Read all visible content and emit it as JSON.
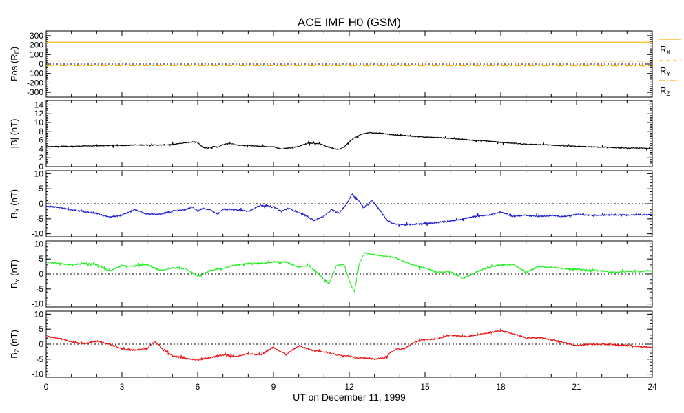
{
  "chart_data": {
    "type": "line",
    "title": "ACE IMF H0 (GSM)",
    "xlabel": "UT on December 11, 1999",
    "xlim": [
      0,
      24
    ],
    "xticks": [
      0,
      3,
      6,
      9,
      12,
      15,
      18,
      21,
      24
    ],
    "panels": [
      {
        "ylabel": "Pos (R",
        "ylabel_sub": "E",
        "ylabel_tail": ")",
        "ylim": [
          -350,
          350
        ],
        "yticks": [
          300,
          200,
          100,
          0,
          -100,
          -200,
          -300
        ],
        "zero_line": true,
        "series": [
          {
            "name": "R",
            "sub": "X",
            "color": "#ffb000",
            "style": "solid",
            "x": [
              0,
              24
            ],
            "y": [
              232,
              232
            ]
          },
          {
            "name": "R",
            "sub": "Y",
            "color": "#ffb000",
            "style": "dashed",
            "x": [
              0,
              24
            ],
            "y": [
              34,
              31
            ]
          },
          {
            "name": "R",
            "sub": "Z",
            "color": "#ffb000",
            "style": "dashdot",
            "x": [
              0,
              24
            ],
            "y": [
              -17,
              -19
            ]
          }
        ]
      },
      {
        "ylabel": "|B| (nT)",
        "ylim": [
          0,
          15
        ],
        "yticks": [
          14,
          12,
          10,
          8,
          6,
          4,
          2,
          0
        ],
        "zero_line": false,
        "series": [
          {
            "name": "",
            "color": "#000000",
            "x": [
              0,
              0.5,
              1,
              1.5,
              2,
              2.5,
              3,
              3.5,
              4,
              4.5,
              5,
              5.5,
              5.8,
              6.0,
              6.2,
              6.4,
              6.6,
              6.8,
              7.0,
              7.3,
              7.6,
              8.0,
              8.5,
              9.0,
              9.3,
              9.6,
              10.0,
              10.4,
              10.8,
              11.1,
              11.4,
              11.6,
              11.8,
              12.0,
              12.2,
              12.5,
              12.8,
              13.2,
              13.6,
              14.0,
              14.5,
              15,
              15.5,
              16,
              16.5,
              17,
              17.5,
              18,
              18.5,
              19,
              19.5,
              20,
              20.5,
              21,
              21.5,
              22,
              22.5,
              23,
              23.5,
              24
            ],
            "y": [
              4.5,
              4.6,
              4.6,
              4.7,
              4.7,
              4.8,
              4.8,
              4.9,
              4.9,
              4.9,
              5.0,
              5.4,
              5.6,
              5.5,
              4.4,
              4.2,
              4.6,
              4.4,
              5.0,
              5.3,
              4.8,
              4.8,
              4.6,
              4.5,
              4.0,
              4.2,
              4.6,
              5.4,
              5.2,
              4.6,
              4.1,
              3.9,
              4.5,
              5.6,
              6.5,
              7.4,
              7.7,
              7.6,
              7.3,
              7.1,
              6.9,
              6.7,
              6.6,
              6.4,
              6.2,
              5.9,
              5.8,
              5.5,
              5.3,
              5.1,
              5.0,
              4.9,
              4.7,
              4.6,
              4.5,
              4.4,
              4.3,
              4.2,
              4.2,
              4.1
            ]
          }
        ]
      },
      {
        "ylabel": "B",
        "ylabel_sub": "X",
        "ylabel_tail": " (nT)",
        "ylim": [
          -11,
          11
        ],
        "yticks": [
          10,
          5,
          0,
          -5,
          -10
        ],
        "zero_line": true,
        "series": [
          {
            "name": "",
            "color": "#2020cc",
            "x": [
              0,
              0.5,
              1,
              1.5,
              2,
              2.5,
              3,
              3.5,
              4,
              4.5,
              5,
              5.5,
              5.8,
              6.0,
              6.2,
              6.5,
              6.8,
              7.0,
              7.5,
              8.0,
              8.5,
              9.0,
              9.3,
              9.6,
              10.0,
              10.3,
              10.6,
              11.0,
              11.3,
              11.6,
              11.9,
              12.1,
              12.3,
              12.6,
              12.9,
              13.2,
              13.5,
              13.8,
              14.2,
              14.6,
              15,
              15.5,
              16,
              16.5,
              17,
              17.5,
              18,
              18.5,
              19,
              19.5,
              20,
              20.5,
              21,
              21.5,
              22,
              22.5,
              23,
              23.5,
              24
            ],
            "y": [
              -0.8,
              -1.2,
              -2.0,
              -2.6,
              -3.2,
              -4.5,
              -3.8,
              -2.0,
              -3.5,
              -3.5,
              -2.5,
              -2.0,
              -1.0,
              -2.5,
              -1.5,
              -2.0,
              -3.5,
              -1.8,
              -2.0,
              -2.5,
              -0.5,
              -1.0,
              -2.5,
              -1.5,
              -3.0,
              -4.0,
              -5.6,
              -4.2,
              -2.0,
              -3.2,
              0.0,
              3.2,
              1.8,
              -1.5,
              1.2,
              -2.0,
              -5.5,
              -6.8,
              -7.0,
              -6.8,
              -6.6,
              -6.2,
              -5.8,
              -5.0,
              -4.2,
              -3.8,
              -2.8,
              -4.2,
              -3.8,
              -4.2,
              -3.9,
              -4.2,
              -3.6,
              -3.8,
              -3.8,
              -3.6,
              -3.8,
              -3.6,
              -3.7
            ]
          }
        ]
      },
      {
        "ylabel": "B",
        "ylabel_sub": "Y",
        "ylabel_tail": " (nT)",
        "ylim": [
          -11,
          11
        ],
        "yticks": [
          10,
          5,
          0,
          -5,
          -10
        ],
        "zero_line": true,
        "series": [
          {
            "name": "",
            "color": "#22ee22",
            "x": [
              0,
              0.5,
              1,
              1.5,
              2,
              2.5,
              3,
              3.5,
              4,
              4.5,
              5,
              5.5,
              6.0,
              6.5,
              7.0,
              7.5,
              8.0,
              8.5,
              9.0,
              9.5,
              10.0,
              10.4,
              10.8,
              11.2,
              11.5,
              11.8,
              12.0,
              12.2,
              12.4,
              12.6,
              12.9,
              13.2,
              13.5,
              13.8,
              14.2,
              14.6,
              15,
              15.5,
              16,
              16.5,
              17,
              17.5,
              18,
              18.5,
              19,
              19.5,
              20,
              20.5,
              21,
              21.5,
              22,
              22.5,
              23,
              23.5,
              24
            ],
            "y": [
              4.0,
              3.5,
              3.0,
              3.5,
              3.2,
              1.0,
              2.8,
              2.6,
              3.2,
              1.2,
              2.0,
              1.8,
              -0.8,
              1.2,
              2.0,
              3.0,
              3.5,
              3.5,
              4.0,
              4.0,
              2.2,
              2.8,
              -0.2,
              -3.2,
              2.8,
              3.2,
              -2.2,
              -6.0,
              3.5,
              7.0,
              6.5,
              6.2,
              5.8,
              5.5,
              4.0,
              2.8,
              2.0,
              0.5,
              0.8,
              -1.5,
              0.5,
              2.2,
              3.0,
              3.2,
              0.5,
              2.5,
              2.2,
              1.8,
              1.6,
              1.2,
              1.0,
              0.5,
              0.9,
              0.8,
              1.2
            ]
          }
        ]
      },
      {
        "ylabel": "B",
        "ylabel_sub": "Z",
        "ylabel_tail": " (nT)",
        "ylim": [
          -11,
          11
        ],
        "yticks": [
          10,
          5,
          0,
          -5,
          -10
        ],
        "zero_line": true,
        "series": [
          {
            "name": "",
            "color": "#ee1111",
            "x": [
              0,
              0.5,
              1,
              1.5,
              2,
              2.5,
              3,
              3.5,
              4,
              4.3,
              4.6,
              5.0,
              5.5,
              6.0,
              6.5,
              7.0,
              7.5,
              8.0,
              8.5,
              9.0,
              9.5,
              10.0,
              10.5,
              11.0,
              11.5,
              12.0,
              12.3,
              12.6,
              13.0,
              13.4,
              13.8,
              14.2,
              14.6,
              15,
              15.5,
              16,
              16.5,
              17,
              17.5,
              18,
              18.5,
              19,
              19.5,
              20,
              20.5,
              21,
              21.5,
              22,
              22.5,
              23,
              23.5,
              24
            ],
            "y": [
              2.5,
              2.0,
              0.8,
              0.2,
              1.0,
              0.0,
              -1.5,
              -2.0,
              -1.5,
              1.0,
              -1.5,
              -3.8,
              -4.8,
              -5.2,
              -4.5,
              -3.5,
              -4.2,
              -3.2,
              -3.5,
              -1.0,
              -3.5,
              -0.5,
              -2.0,
              -2.5,
              -3.5,
              -4.0,
              -4.5,
              -4.5,
              -5.0,
              -4.5,
              -1.8,
              -1.5,
              0.8,
              1.5,
              1.8,
              3.0,
              2.5,
              3.0,
              3.8,
              4.5,
              3.5,
              2.0,
              2.2,
              1.5,
              0.5,
              -0.5,
              0.0,
              0.0,
              -0.2,
              -0.5,
              -0.8,
              -1.2
            ]
          }
        ]
      }
    ],
    "grid": false,
    "legend": "right-of-top-panel"
  }
}
